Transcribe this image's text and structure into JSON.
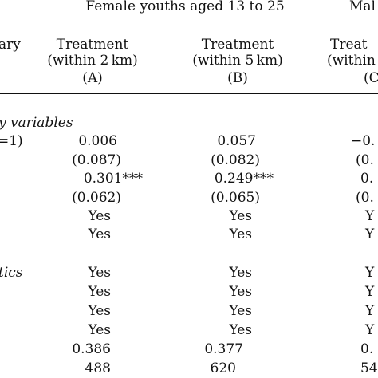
{
  "header": {
    "group_female": "Female youths aged 13 to 25",
    "group_male_fragment": "Mal",
    "left_fragment": "ary"
  },
  "columns": [
    {
      "title": "Treatment",
      "sub": "(within 2 km)",
      "letter": "(A)"
    },
    {
      "title": "Treatment",
      "sub": "(within 5 km)",
      "letter": "(B)"
    },
    {
      "title": "Treat",
      "sub": "(within",
      "letter": "(C"
    }
  ],
  "sections": {
    "dummy_label": "y variables",
    "stats_label": "tics"
  },
  "rows": [
    {
      "label": "=1)",
      "a": "0.006",
      "b": "0.057",
      "c": "−0."
    },
    {
      "label": "",
      "a": "(0.087)",
      "b": "(0.082)",
      "c": "(0."
    },
    {
      "label": "",
      "a": "0.301***",
      "b": "0.249***",
      "c": "0."
    },
    {
      "label": "",
      "a": "(0.062)",
      "b": "(0.065)",
      "c": "(0."
    },
    {
      "label": "",
      "a": "Yes",
      "b": "Yes",
      "c": "Y"
    },
    {
      "label": "",
      "a": "Yes",
      "b": "Yes",
      "c": "Y"
    },
    {
      "label": "",
      "a": "Yes",
      "b": "Yes",
      "c": "Y"
    },
    {
      "label": "",
      "a": "Yes",
      "b": "Yes",
      "c": "Y"
    },
    {
      "label": "",
      "a": "Yes",
      "b": "Yes",
      "c": "Y"
    },
    {
      "label": "",
      "a": "Yes",
      "b": "Yes",
      "c": "Y"
    },
    {
      "label": "",
      "a": "0.386",
      "b": "0.377",
      "c": "0."
    },
    {
      "label": "",
      "a": "488",
      "b": "620",
      "c": "54"
    }
  ]
}
